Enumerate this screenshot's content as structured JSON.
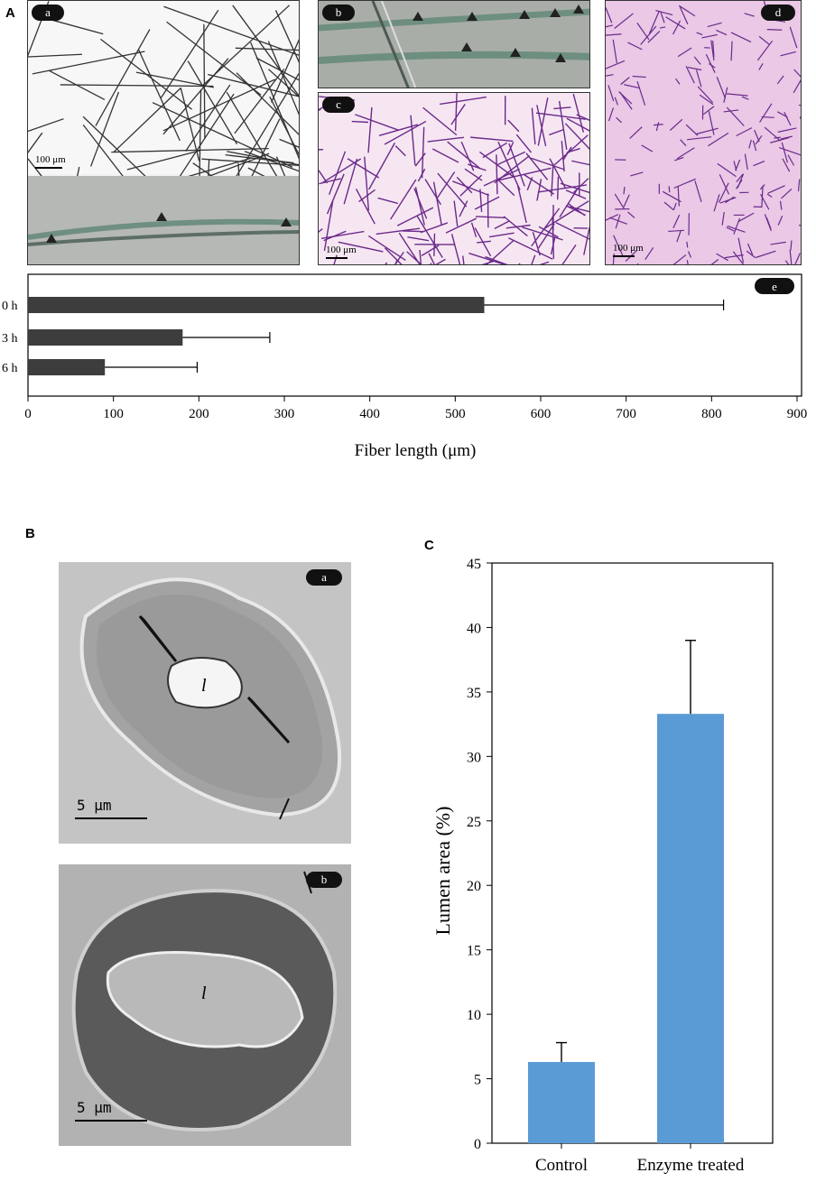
{
  "figure": {
    "panel_A_label": "A",
    "panel_B_label": "B",
    "panel_C_label": "C"
  },
  "panel_A": {
    "sublabels": [
      "a",
      "b",
      "c",
      "d",
      "e"
    ],
    "scale_a": "100 μm",
    "scale_c": "100 μm",
    "scale_d": "100 μm"
  },
  "panel_B": {
    "sublabels": [
      "a",
      "b"
    ],
    "scale_a": "5 μm",
    "scale_b": "5 μm",
    "lumen_a": "l",
    "lumen_b": "l"
  },
  "colors": {
    "bar_dark": "#3d3d3d",
    "bar_blue": "#5b9bd5",
    "pink_bg": "#ecc8e8",
    "fiber_purple": "#6a2a8a"
  },
  "chart_data": [
    {
      "type": "bar",
      "orientation": "horizontal",
      "categories": [
        "0 h",
        "3 h",
        "6 h"
      ],
      "values": [
        534,
        181,
        90
      ],
      "errors": [
        280,
        102,
        108
      ],
      "xlabel": "Fiber length (μm)",
      "xlim": [
        0,
        900
      ],
      "xticks": [
        "0",
        "100",
        "200",
        "300",
        "400",
        "500",
        "600",
        "700",
        "800",
        "900"
      ]
    },
    {
      "type": "bar",
      "categories": [
        "Control",
        "Enzyme treated"
      ],
      "values": [
        6.3,
        33.3
      ],
      "errors": [
        1.5,
        5.7
      ],
      "ylabel": "Lumen area (%)",
      "ylim": [
        0,
        45
      ],
      "yticks": [
        "0",
        "5",
        "10",
        "15",
        "20",
        "25",
        "30",
        "35",
        "40",
        "45"
      ]
    }
  ]
}
